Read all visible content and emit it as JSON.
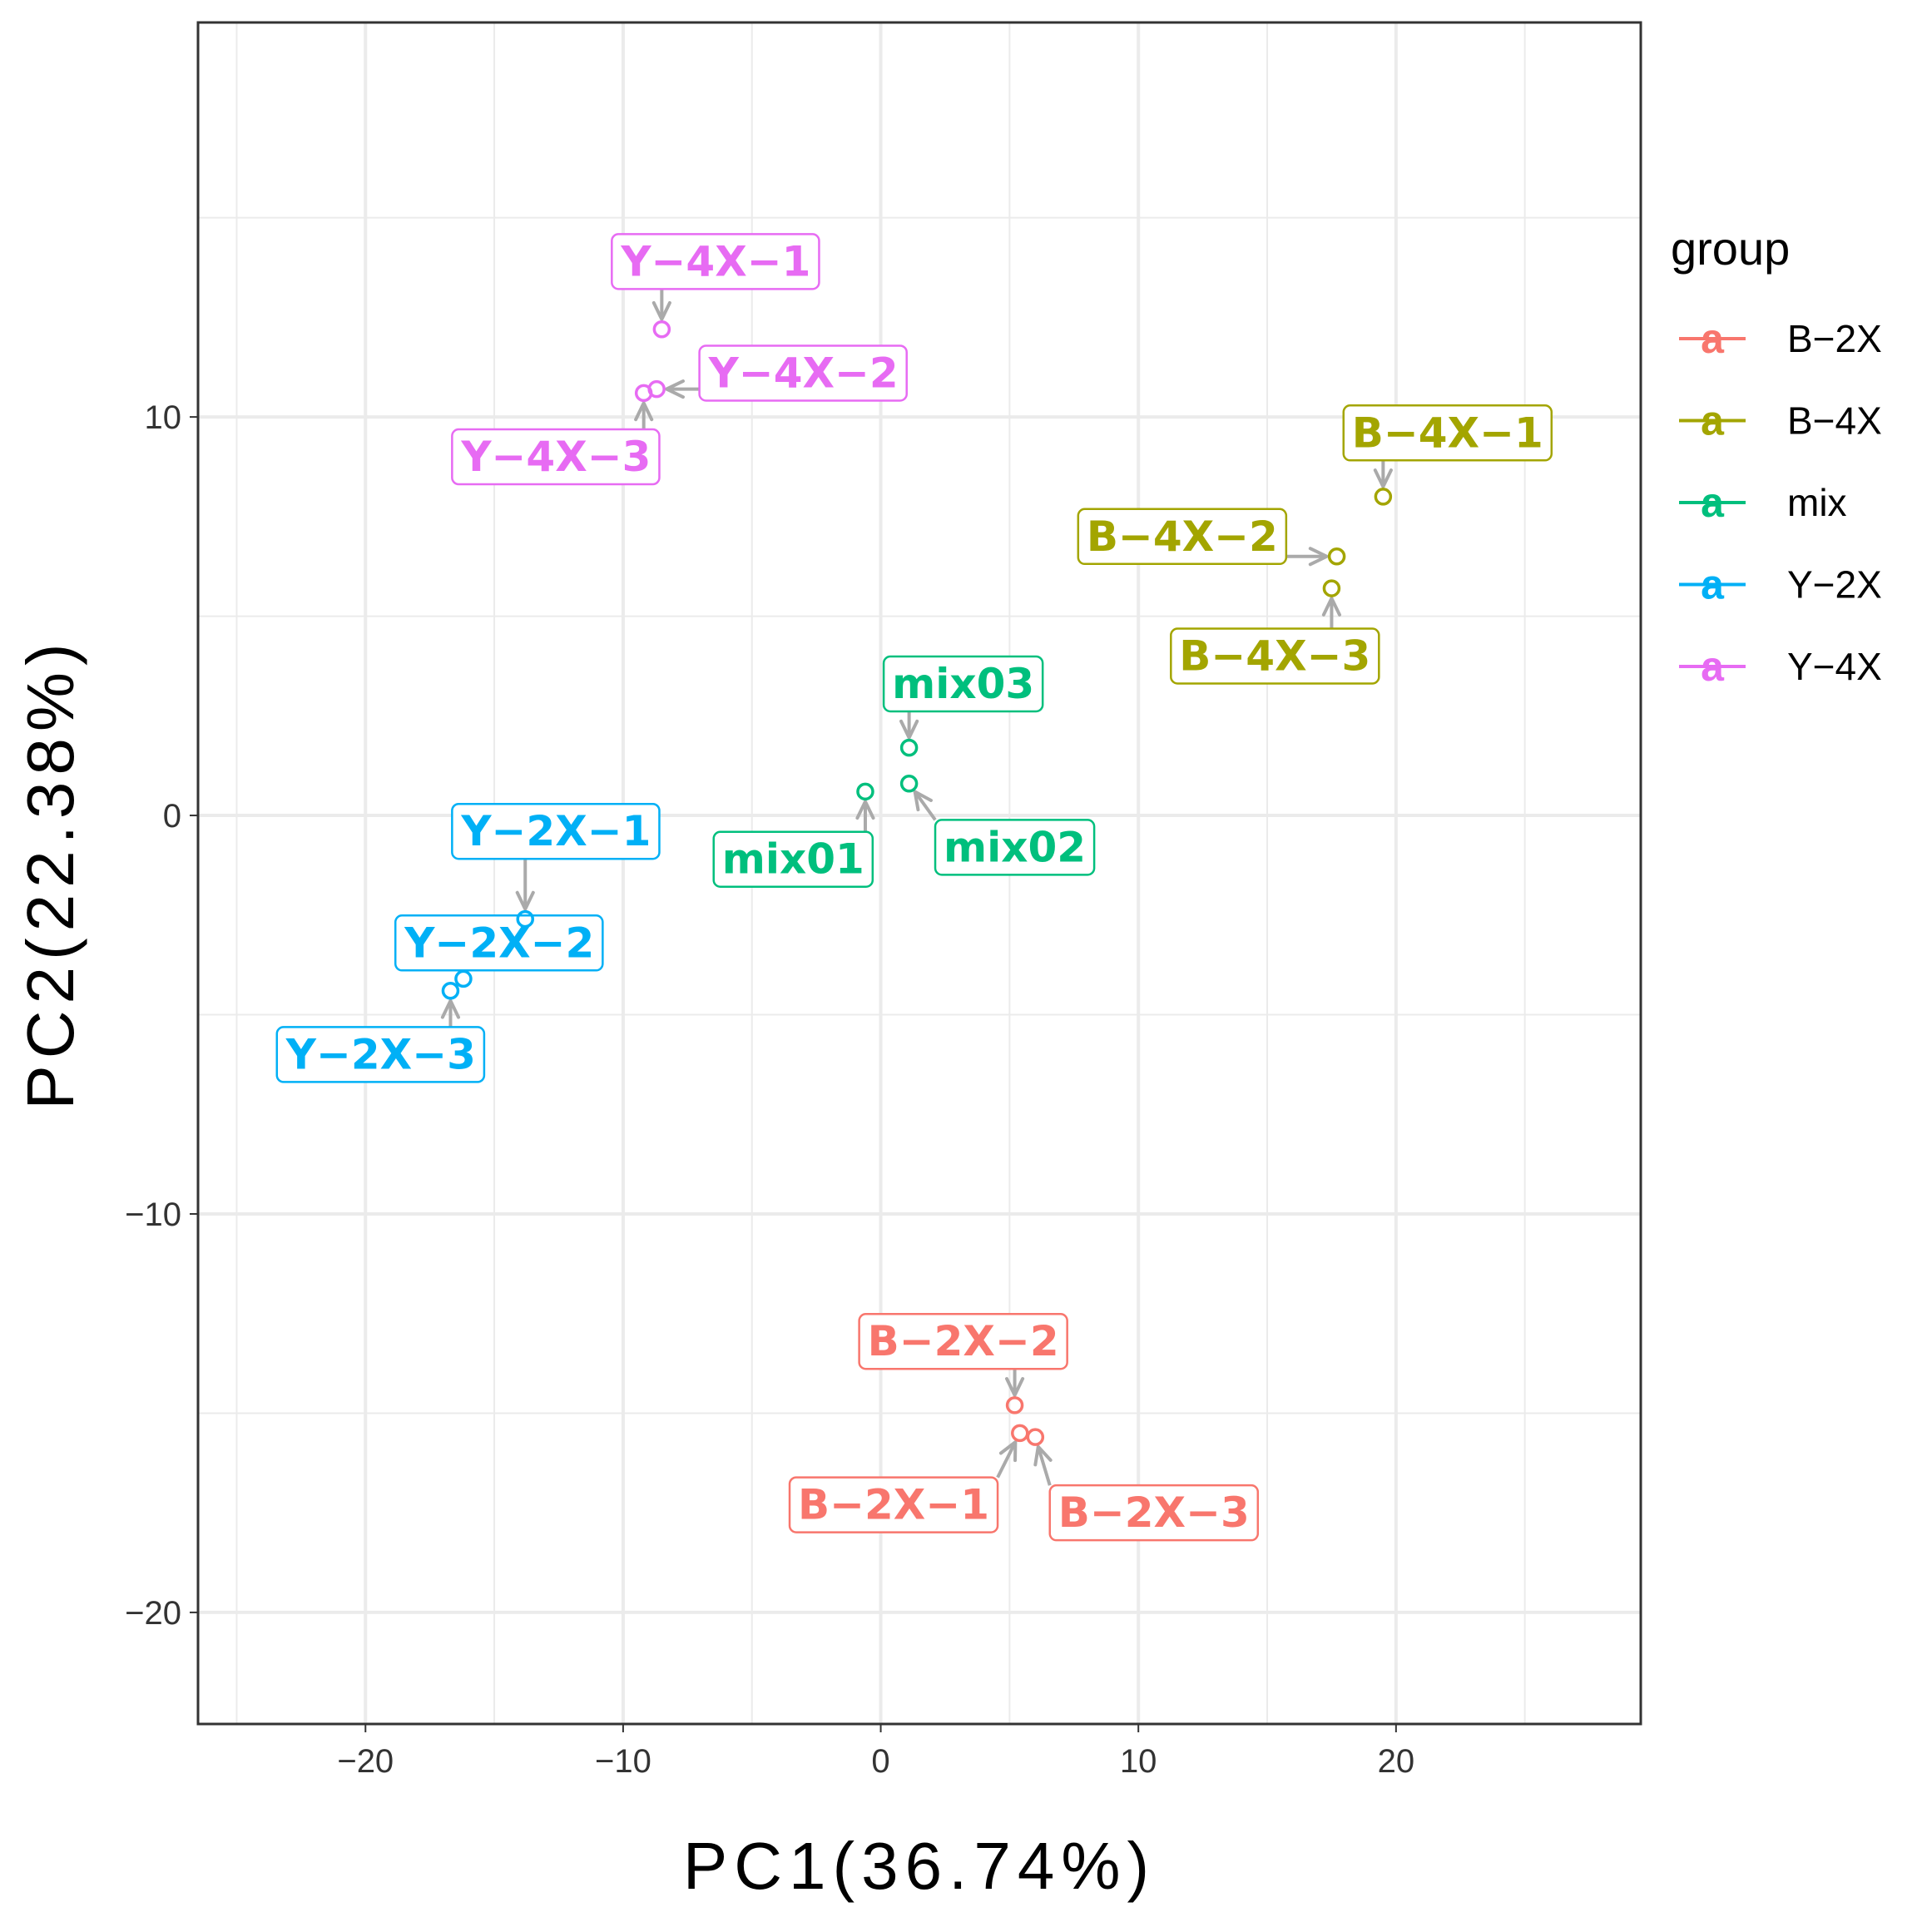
{
  "chart_data": {
    "type": "scatter",
    "title": "",
    "xlabel": "PC1(36.74%)",
    "ylabel": "PC2(22.38%)",
    "xlim": [
      -26.5,
      29.5
    ],
    "ylim": [
      -22.8,
      19.9
    ],
    "x_ticks": [
      -20,
      -10,
      0,
      10,
      20
    ],
    "x_tick_labels": [
      "−20",
      "−10",
      "0",
      "10",
      "20"
    ],
    "y_ticks": [
      -20,
      -10,
      0,
      10
    ],
    "y_tick_labels": [
      "−20",
      "−10",
      "0",
      "10"
    ],
    "grid": true,
    "legend": {
      "title": "group",
      "position": "right",
      "key_glyph": "a",
      "entries": [
        "B−2X",
        "B−4X",
        "mix",
        "Y−2X",
        "Y−4X"
      ]
    },
    "colors": {
      "B-2X": "#F8766D",
      "B-4X": "#A3A500",
      "mix": "#00BF7D",
      "Y-2X": "#00B0F6",
      "Y-4X": "#E76BF3",
      "connector": "#AAAAAA",
      "grid": "#EBEBEB"
    },
    "series": [
      {
        "name": "B-2X",
        "points": [
          {
            "x": 5.4,
            "y": -15.5,
            "label": "B−2X−1",
            "label_x": 0.5,
            "label_y": -17.3
          },
          {
            "x": 5.2,
            "y": -14.8,
            "label": "B−2X−2",
            "label_x": 3.2,
            "label_y": -13.2
          },
          {
            "x": 6.0,
            "y": -15.6,
            "label": "B−2X−3",
            "label_x": 10.6,
            "label_y": -17.5
          }
        ]
      },
      {
        "name": "B-4X",
        "points": [
          {
            "x": 19.5,
            "y": 8.0,
            "label": "B−4X−1",
            "label_x": 22.0,
            "label_y": 9.6
          },
          {
            "x": 17.7,
            "y": 6.5,
            "label": "B−4X−2",
            "label_x": 11.7,
            "label_y": 7.0
          },
          {
            "x": 17.5,
            "y": 5.7,
            "label": "B−4X−3",
            "label_x": 15.3,
            "label_y": 4.0
          }
        ]
      },
      {
        "name": "mix",
        "points": [
          {
            "x": -0.6,
            "y": 0.6,
            "label": "mix01",
            "label_x": -3.4,
            "label_y": -1.1
          },
          {
            "x": 1.1,
            "y": 0.8,
            "label": "mix02",
            "label_x": 5.2,
            "label_y": -0.8
          },
          {
            "x": 1.1,
            "y": 1.7,
            "label": "mix03",
            "label_x": 3.2,
            "label_y": 3.3
          }
        ]
      },
      {
        "name": "Y-2X",
        "points": [
          {
            "x": -13.8,
            "y": -2.6,
            "label": "Y−2X−1",
            "label_x": -12.6,
            "label_y": -0.4
          },
          {
            "x": -16.2,
            "y": -4.1,
            "label": "Y−2X−2",
            "label_x": -14.8,
            "label_y": -3.2
          },
          {
            "x": -16.7,
            "y": -4.4,
            "label": "Y−2X−3",
            "label_x": -19.4,
            "label_y": -6.0
          }
        ]
      },
      {
        "name": "Y-4X",
        "points": [
          {
            "x": -8.5,
            "y": 12.2,
            "label": "Y−4X−1",
            "label_x": -6.4,
            "label_y": 13.9
          },
          {
            "x": -8.7,
            "y": 10.7,
            "label": "Y−4X−2",
            "label_x": -3.0,
            "label_y": 11.1
          },
          {
            "x": -9.2,
            "y": 10.6,
            "label": "Y−4X−3",
            "label_x": -12.6,
            "label_y": 9.0
          }
        ]
      }
    ]
  }
}
